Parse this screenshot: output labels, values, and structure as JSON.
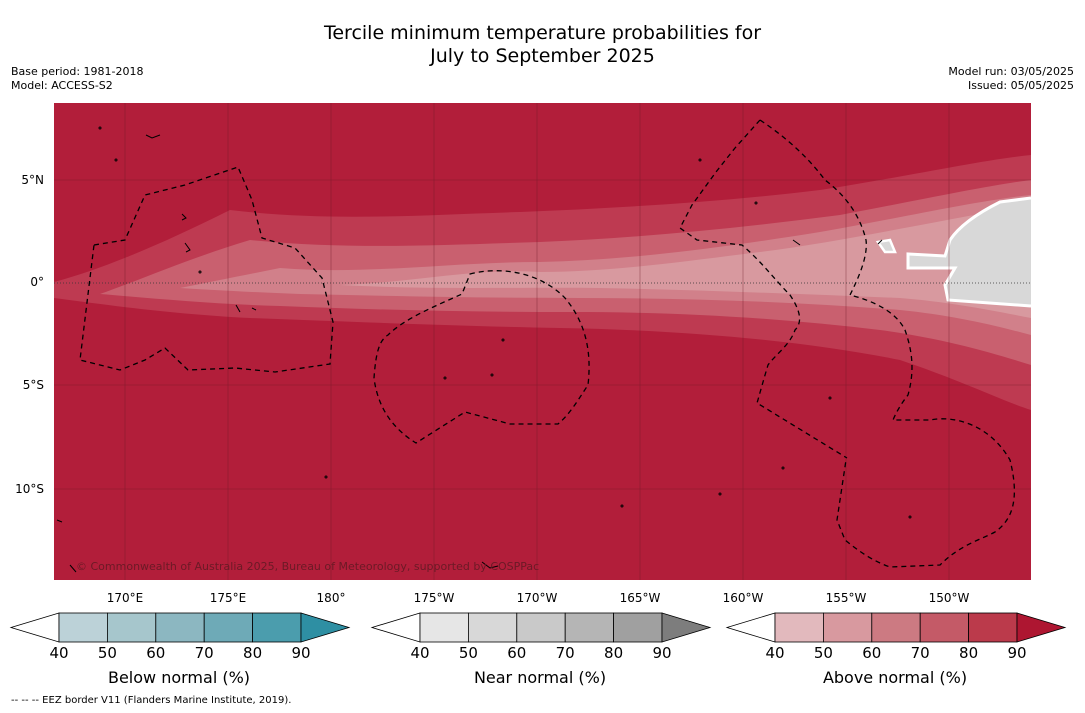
{
  "header": {
    "title_line1": "Tercile minimum temperature probabilities for",
    "title_line2": "July to September 2025",
    "base_period": "Base period: 1981-2018",
    "model": "Model: ACCESS-S2",
    "model_run": "Model run: 03/05/2025",
    "issued": "Issued: 05/05/2025"
  },
  "map": {
    "lat_ticks": [
      "5°N",
      "0°",
      "5°S",
      "10°S"
    ],
    "lon_ticks": [
      "170°E",
      "175°E",
      "180°",
      "175°W",
      "170°W",
      "165°W",
      "160°W",
      "155°W",
      "150°W"
    ],
    "copyright": "© Commonwealth of Australia 2025, Bureau of Meteorology, supported by COSPPac",
    "colors": {
      "above_90": "#b21e3a",
      "above_80": "#be3a51",
      "above_70": "#c9606f",
      "above_60": "#d1808a",
      "above_50": "#d8999f",
      "near_normal_50": "#d8d8d8"
    }
  },
  "colorbars": {
    "below": {
      "label": "Below normal (%)",
      "ticks": [
        "40",
        "50",
        "60",
        "70",
        "80",
        "90"
      ],
      "colors": [
        "#bcd2d8",
        "#a6c6cc",
        "#8cb7c1",
        "#6eaab7",
        "#4b9dad",
        "#2e8fa3"
      ]
    },
    "near": {
      "label": "Near normal (%)",
      "ticks": [
        "40",
        "50",
        "60",
        "70",
        "80",
        "90"
      ],
      "colors": [
        "#e6e6e6",
        "#d8d8d8",
        "#c9c9c9",
        "#b5b5b5",
        "#a0a0a0",
        "#7d7d7d"
      ]
    },
    "above": {
      "label": "Above normal (%)",
      "ticks": [
        "40",
        "50",
        "60",
        "70",
        "80",
        "90"
      ],
      "colors": [
        "#e2b9bd",
        "#d8999f",
        "#cc7a82",
        "#c45a67",
        "#bb3a4b",
        "#ae1631"
      ]
    }
  },
  "footnote": "-- -- -- EEZ border V11 (Flanders Marine Institute, 2019)."
}
